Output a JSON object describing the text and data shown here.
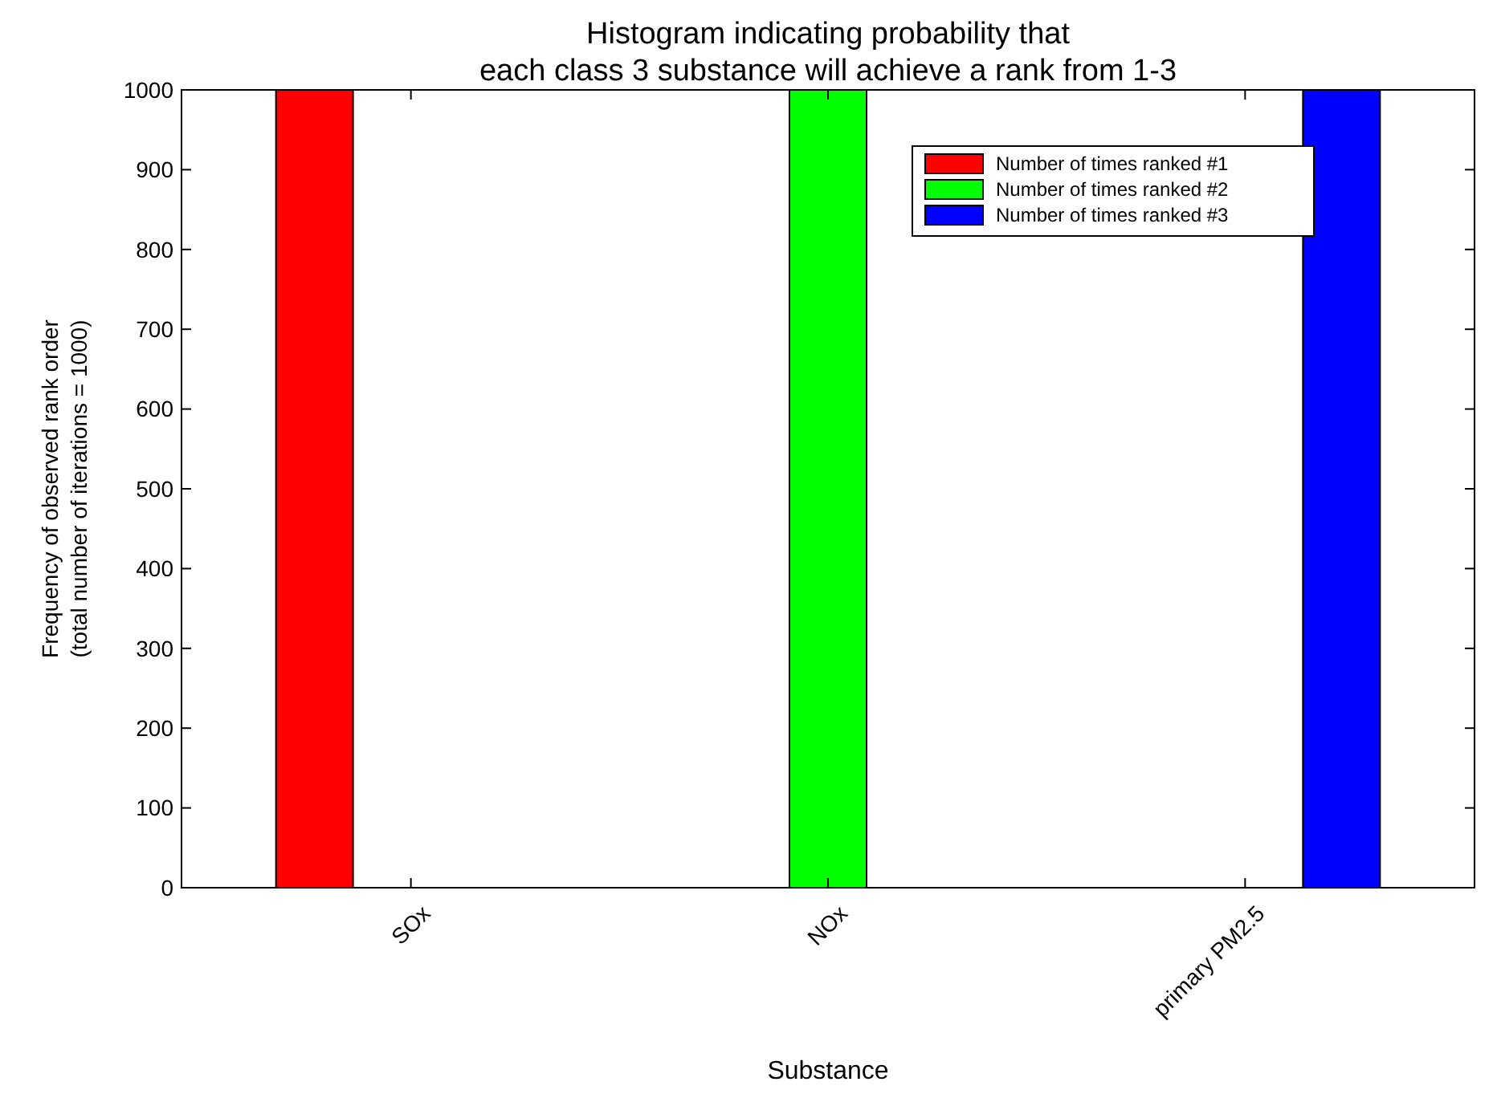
{
  "chart_data": {
    "type": "bar",
    "title": "Histogram indicating probability that\neach class 3 substance will achieve a rank from 1-3",
    "xlabel": "Substance",
    "ylabel": "Frequency of observed rank order\n(total number of iterations = 1000)",
    "categories": [
      "SOx",
      "NOx",
      "primary PM2.5"
    ],
    "series": [
      {
        "name": "Number of times ranked #1",
        "color": "#ff0000",
        "values": [
          1000,
          0,
          0
        ]
      },
      {
        "name": "Number of times ranked #2",
        "color": "#00ff00",
        "values": [
          0,
          1000,
          0
        ]
      },
      {
        "name": "Number of times ranked #3",
        "color": "#0000ff",
        "values": [
          0,
          0,
          1000
        ]
      }
    ],
    "ylim": [
      0,
      1000
    ],
    "yticks": [
      0,
      100,
      200,
      300,
      400,
      500,
      600,
      700,
      800,
      900,
      1000
    ],
    "grid": false,
    "legend": "top right"
  }
}
